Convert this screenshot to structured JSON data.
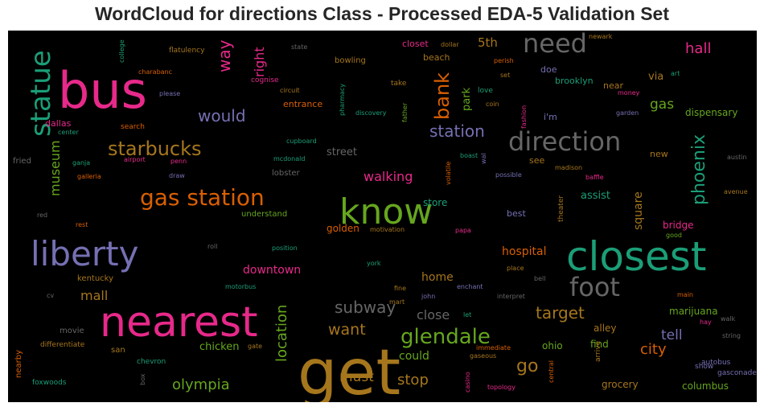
{
  "title": "WordCloud for directions Class - Processed EDA-5 Validation Set",
  "colors": {
    "background": "#000000",
    "title": "#262626"
  },
  "chart_data": {
    "type": "wordcloud",
    "title": "WordCloud for directions Class - Processed EDA-5 Validation Set",
    "background": "#000000",
    "colormap": "Dark2",
    "words": [
      {
        "text": "get",
        "weight": 1.0,
        "color": "#a6761d"
      },
      {
        "text": "nearest",
        "weight": 0.92,
        "color": "#e7298a"
      },
      {
        "text": "closest",
        "weight": 0.88,
        "color": "#1b9e77"
      },
      {
        "text": "bus",
        "weight": 0.86,
        "color": "#e7298a"
      },
      {
        "text": "know",
        "weight": 0.78,
        "color": "#66a61e"
      },
      {
        "text": "liberty",
        "weight": 0.74,
        "color": "#7570b3"
      },
      {
        "text": "statue",
        "weight": 0.62,
        "color": "#1b9e77"
      },
      {
        "text": "need",
        "weight": 0.6,
        "color": "#666666"
      },
      {
        "text": "foot",
        "weight": 0.6,
        "color": "#666666"
      },
      {
        "text": "direction",
        "weight": 0.58,
        "color": "#666666"
      },
      {
        "text": "gas station",
        "weight": 0.56,
        "color": "#d95f02"
      },
      {
        "text": "glendale",
        "weight": 0.5,
        "color": "#66a61e"
      },
      {
        "text": "starbucks",
        "weight": 0.48,
        "color": "#a6761d"
      },
      {
        "text": "bank",
        "weight": 0.42,
        "color": "#d95f02"
      },
      {
        "text": "subway",
        "weight": 0.4,
        "color": "#666666"
      },
      {
        "text": "phoenix",
        "weight": 0.4,
        "color": "#1b9e77"
      },
      {
        "text": "station",
        "weight": 0.38,
        "color": "#7570b3"
      },
      {
        "text": "target",
        "weight": 0.36,
        "color": "#a6761d"
      },
      {
        "text": "go",
        "weight": 0.36,
        "color": "#a6761d"
      },
      {
        "text": "would",
        "weight": 0.36,
        "color": "#7570b3"
      },
      {
        "text": "way",
        "weight": 0.34,
        "color": "#e7298a"
      },
      {
        "text": "want",
        "weight": 0.34,
        "color": "#a6761d"
      },
      {
        "text": "location",
        "weight": 0.32,
        "color": "#66a61e"
      },
      {
        "text": "hall",
        "weight": 0.32,
        "color": "#e7298a"
      },
      {
        "text": "olympia",
        "weight": 0.32,
        "color": "#66a61e"
      },
      {
        "text": "stop",
        "weight": 0.32,
        "color": "#a6761d"
      },
      {
        "text": "city",
        "weight": 0.3,
        "color": "#d95f02"
      },
      {
        "text": "tell",
        "weight": 0.3,
        "color": "#7570b3"
      },
      {
        "text": "must",
        "weight": 0.3,
        "color": "#a6761d"
      },
      {
        "text": "museum",
        "weight": 0.3,
        "color": "#66a61e"
      },
      {
        "text": "gas",
        "weight": 0.3,
        "color": "#66a61e"
      },
      {
        "text": "walking",
        "weight": 0.3,
        "color": "#e7298a"
      },
      {
        "text": "close",
        "weight": 0.3,
        "color": "#666666"
      },
      {
        "text": "mall",
        "weight": 0.3,
        "color": "#a6761d"
      },
      {
        "text": "right",
        "weight": 0.28,
        "color": "#e7298a"
      },
      {
        "text": "square",
        "weight": 0.26,
        "color": "#a6761d"
      },
      {
        "text": "5th",
        "weight": 0.26,
        "color": "#a6761d"
      },
      {
        "text": "park",
        "weight": 0.24,
        "color": "#66a61e"
      },
      {
        "text": "downtown",
        "weight": 0.26,
        "color": "#e7298a"
      },
      {
        "text": "hospital",
        "weight": 0.26,
        "color": "#d95f02"
      },
      {
        "text": "home",
        "weight": 0.26,
        "color": "#a6761d"
      },
      {
        "text": "could",
        "weight": 0.26,
        "color": "#66a61e"
      },
      {
        "text": "chicken",
        "weight": 0.24,
        "color": "#66a61e"
      },
      {
        "text": "street",
        "weight": 0.24,
        "color": "#666666"
      },
      {
        "text": "via",
        "weight": 0.24,
        "color": "#a6761d"
      },
      {
        "text": "assist",
        "weight": 0.24,
        "color": "#1b9e77"
      },
      {
        "text": "marijuana",
        "weight": 0.22,
        "color": "#66a61e"
      },
      {
        "text": "dispensary",
        "weight": 0.22,
        "color": "#66a61e"
      },
      {
        "text": "store",
        "weight": 0.22,
        "color": "#1b9e77"
      },
      {
        "text": "golden",
        "weight": 0.22,
        "color": "#d95f02"
      },
      {
        "text": "alley",
        "weight": 0.22,
        "color": "#a6761d"
      },
      {
        "text": "grocery",
        "weight": 0.2,
        "color": "#a6761d"
      },
      {
        "text": "find",
        "weight": 0.2,
        "color": "#66a61e"
      },
      {
        "text": "ohio",
        "weight": 0.2,
        "color": "#66a61e"
      },
      {
        "text": "columbus",
        "weight": 0.2,
        "color": "#66a61e"
      },
      {
        "text": "bridge",
        "weight": 0.2,
        "color": "#e7298a"
      },
      {
        "text": "brooklyn",
        "weight": 0.2,
        "color": "#1b9e77"
      },
      {
        "text": "entrance",
        "weight": 0.2,
        "color": "#d95f02"
      },
      {
        "text": "kentucky",
        "weight": 0.18,
        "color": "#a6761d"
      },
      {
        "text": "san",
        "weight": 0.18,
        "color": "#a6761d"
      },
      {
        "text": "movie",
        "weight": 0.18,
        "color": "#666666"
      },
      {
        "text": "understand",
        "weight": 0.18,
        "color": "#66a61e"
      },
      {
        "text": "lobster",
        "weight": 0.18,
        "color": "#666666"
      },
      {
        "text": "i'm",
        "weight": 0.18,
        "color": "#7570b3"
      },
      {
        "text": "see",
        "weight": 0.18,
        "color": "#a6761d"
      },
      {
        "text": "best",
        "weight": 0.18,
        "color": "#7570b3"
      },
      {
        "text": "beach",
        "weight": 0.18,
        "color": "#a6761d"
      },
      {
        "text": "closet",
        "weight": 0.18,
        "color": "#e7298a"
      },
      {
        "text": "near",
        "weight": 0.18,
        "color": "#a6761d"
      },
      {
        "text": "doe",
        "weight": 0.18,
        "color": "#7570b3"
      },
      {
        "text": "new",
        "weight": 0.16,
        "color": "#a6761d"
      },
      {
        "text": "dallas",
        "weight": 0.16,
        "color": "#e7298a"
      },
      {
        "text": "fried",
        "weight": 0.16,
        "color": "#666666"
      },
      {
        "text": "bowling",
        "weight": 0.15,
        "color": "#a6761d"
      },
      {
        "text": "cognise",
        "weight": 0.15,
        "color": "#e7298a"
      },
      {
        "text": "flatulency",
        "weight": 0.15,
        "color": "#a6761d"
      },
      {
        "text": "theater",
        "weight": 0.15,
        "color": "#a6761d"
      },
      {
        "text": "arrive",
        "weight": 0.15,
        "color": "#a6761d"
      },
      {
        "text": "take",
        "weight": 0.14,
        "color": "#a6761d"
      },
      {
        "text": "love",
        "weight": 0.14,
        "color": "#1b9e77"
      },
      {
        "text": "search",
        "weight": 0.14,
        "color": "#d95f02"
      },
      {
        "text": "differentiate",
        "weight": 0.14,
        "color": "#a6761d"
      },
      {
        "text": "nearby",
        "weight": 0.14,
        "color": "#d95f02"
      },
      {
        "text": "chevron",
        "weight": 0.14,
        "color": "#1b9e77"
      },
      {
        "text": "foxwoods",
        "weight": 0.14,
        "color": "#1b9e77"
      },
      {
        "text": "autobus",
        "weight": 0.14,
        "color": "#7570b3"
      },
      {
        "text": "gasconade",
        "weight": 0.14,
        "color": "#7570b3"
      },
      {
        "text": "show",
        "weight": 0.14,
        "color": "#7570b3"
      },
      {
        "text": "rest",
        "weight": 0.14,
        "color": "#d95f02"
      },
      {
        "text": "galleria",
        "weight": 0.14,
        "color": "#d95f02"
      },
      {
        "text": "airport",
        "weight": 0.14,
        "color": "#e7298a"
      },
      {
        "text": "penn",
        "weight": 0.14,
        "color": "#e7298a"
      },
      {
        "text": "ganja",
        "weight": 0.14,
        "color": "#1b9e77"
      },
      {
        "text": "draw",
        "weight": 0.14,
        "color": "#7570b3"
      },
      {
        "text": "mcdonald",
        "weight": 0.14,
        "color": "#1b9e77"
      },
      {
        "text": "cupboard",
        "weight": 0.14,
        "color": "#1b9e77"
      },
      {
        "text": "circuit",
        "weight": 0.14,
        "color": "#a6761d"
      },
      {
        "text": "state",
        "weight": 0.14,
        "color": "#666666"
      },
      {
        "text": "dollar",
        "weight": 0.14,
        "color": "#a6761d"
      },
      {
        "text": "perish",
        "weight": 0.14,
        "color": "#d95f02"
      },
      {
        "text": "set",
        "weight": 0.14,
        "color": "#a6761d"
      },
      {
        "text": "coin",
        "weight": 0.14,
        "color": "#a6761d"
      },
      {
        "text": "discovery",
        "weight": 0.14,
        "color": "#1b9e77"
      },
      {
        "text": "pharmacy",
        "weight": 0.14,
        "color": "#1b9e77"
      },
      {
        "text": "father",
        "weight": 0.14,
        "color": "#66a61e"
      },
      {
        "text": "fashion",
        "weight": 0.14,
        "color": "#e7298a"
      },
      {
        "text": "money",
        "weight": 0.14,
        "color": "#e7298a"
      },
      {
        "text": "garden",
        "weight": 0.14,
        "color": "#7570b3"
      },
      {
        "text": "art",
        "weight": 0.14,
        "color": "#1b9e77"
      },
      {
        "text": "newark",
        "weight": 0.14,
        "color": "#a6761d"
      },
      {
        "text": "boast",
        "weight": 0.14,
        "color": "#1b9e77"
      },
      {
        "text": "wal",
        "weight": 0.14,
        "color": "#7570b3"
      },
      {
        "text": "volatile",
        "weight": 0.14,
        "color": "#d95f02"
      },
      {
        "text": "madison",
        "weight": 0.14,
        "color": "#a6761d"
      },
      {
        "text": "baffle",
        "weight": 0.14,
        "color": "#e7298a"
      },
      {
        "text": "possible",
        "weight": 0.14,
        "color": "#7570b3"
      },
      {
        "text": "austin",
        "weight": 0.14,
        "color": "#666666"
      },
      {
        "text": "avenue",
        "weight": 0.14,
        "color": "#a6761d"
      },
      {
        "text": "good",
        "weight": 0.14,
        "color": "#66a61e"
      },
      {
        "text": "papa",
        "weight": 0.14,
        "color": "#e7298a"
      },
      {
        "text": "motivation",
        "weight": 0.14,
        "color": "#a6761d"
      },
      {
        "text": "position",
        "weight": 0.14,
        "color": "#1b9e77"
      },
      {
        "text": "roll",
        "weight": 0.14,
        "color": "#666666"
      },
      {
        "text": "york",
        "weight": 0.14,
        "color": "#1b9e77"
      },
      {
        "text": "fine",
        "weight": 0.14,
        "color": "#a6761d"
      },
      {
        "text": "mart",
        "weight": 0.14,
        "color": "#a6761d"
      },
      {
        "text": "john",
        "weight": 0.14,
        "color": "#7570b3"
      },
      {
        "text": "enchant",
        "weight": 0.14,
        "color": "#7570b3"
      },
      {
        "text": "interpret",
        "weight": 0.14,
        "color": "#666666"
      },
      {
        "text": "place",
        "weight": 0.14,
        "color": "#a6761d"
      },
      {
        "text": "bell",
        "weight": 0.14,
        "color": "#666666"
      },
      {
        "text": "main",
        "weight": 0.14,
        "color": "#d95f02"
      },
      {
        "text": "hay",
        "weight": 0.14,
        "color": "#e7298a"
      },
      {
        "text": "walk",
        "weight": 0.14,
        "color": "#666666"
      },
      {
        "text": "string",
        "weight": 0.14,
        "color": "#666666"
      },
      {
        "text": "let",
        "weight": 0.14,
        "color": "#1b9e77"
      },
      {
        "text": "immediate",
        "weight": 0.14,
        "color": "#d95f02"
      },
      {
        "text": "gaseous",
        "weight": 0.14,
        "color": "#a6761d"
      },
      {
        "text": "casino",
        "weight": 0.14,
        "color": "#e7298a"
      },
      {
        "text": "topology",
        "weight": 0.14,
        "color": "#e7298a"
      },
      {
        "text": "central",
        "weight": 0.14,
        "color": "#d95f02"
      },
      {
        "text": "gate",
        "weight": 0.14,
        "color": "#a6761d"
      },
      {
        "text": "box",
        "weight": 0.14,
        "color": "#666666"
      },
      {
        "text": "motorbus",
        "weight": 0.14,
        "color": "#1b9e77"
      },
      {
        "text": "cv",
        "weight": 0.14,
        "color": "#666666"
      },
      {
        "text": "red",
        "weight": 0.14,
        "color": "#666666"
      },
      {
        "text": "center",
        "weight": 0.14,
        "color": "#1b9e77"
      },
      {
        "text": "college",
        "weight": 0.14,
        "color": "#1b9e77"
      },
      {
        "text": "charabanc",
        "weight": 0.14,
        "color": "#d95f02"
      },
      {
        "text": "please",
        "weight": 0.14,
        "color": "#7570b3"
      }
    ]
  }
}
